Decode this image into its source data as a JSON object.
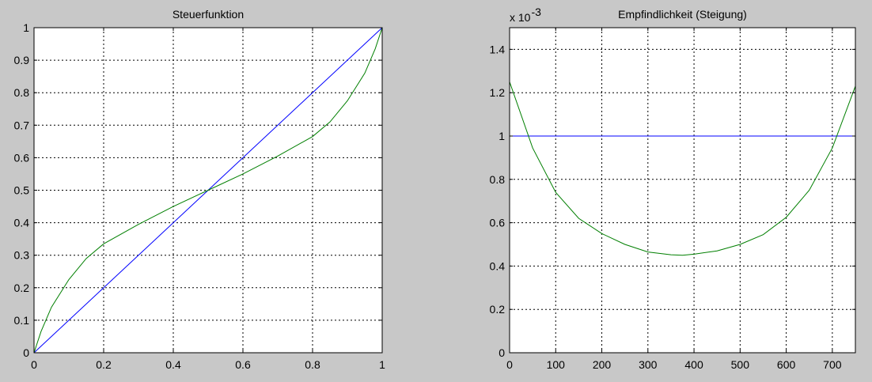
{
  "figure": {
    "background": "#c8c8c8",
    "axes_background": "#ffffff",
    "grid": true,
    "grid_style": "dotted",
    "series_colors": {
      "blue": "#0000ff",
      "green": "#007f00"
    }
  },
  "chart_data": [
    {
      "type": "line",
      "title": "Steuerfunktion",
      "xlabel": "",
      "ylabel": "",
      "xlim": [
        0,
        1
      ],
      "ylim": [
        0,
        1
      ],
      "xticks": [
        0,
        0.2,
        0.4,
        0.6,
        0.8,
        1
      ],
      "xtick_labels": [
        "0",
        "0.2",
        "0.4",
        "0.6",
        "0.8",
        "1"
      ],
      "yticks": [
        0,
        0.1,
        0.2,
        0.3,
        0.4,
        0.5,
        0.6,
        0.7,
        0.8,
        0.9,
        1
      ],
      "ytick_labels": [
        "0",
        "0.1",
        "0.2",
        "0.3",
        "0.4",
        "0.5",
        "0.6",
        "0.7",
        "0.8",
        "0.9",
        "1"
      ],
      "grid": true,
      "series": [
        {
          "color": "#0000ff",
          "x": [
            0,
            1
          ],
          "y": [
            0,
            1
          ]
        },
        {
          "color": "#007f00",
          "x": [
            0,
            0.02,
            0.05,
            0.1,
            0.15,
            0.2,
            0.3,
            0.4,
            0.5,
            0.6,
            0.7,
            0.8,
            0.85,
            0.9,
            0.95,
            0.98,
            1
          ],
          "y": [
            0,
            0.065,
            0.14,
            0.225,
            0.29,
            0.335,
            0.395,
            0.45,
            0.5,
            0.55,
            0.605,
            0.665,
            0.71,
            0.775,
            0.86,
            0.935,
            1
          ]
        }
      ]
    },
    {
      "type": "line",
      "title": "Empfindlichkeit (Steigung)",
      "xlabel": "",
      "ylabel": "",
      "y_multiplier": "x 10",
      "y_exponent": "-3",
      "xlim": [
        0,
        750
      ],
      "ylim": [
        0,
        1.5
      ],
      "xticks": [
        0,
        100,
        200,
        300,
        400,
        500,
        600,
        700
      ],
      "xtick_labels": [
        "0",
        "100",
        "200",
        "300",
        "400",
        "500",
        "600",
        "700"
      ],
      "yticks": [
        0,
        0.2,
        0.4,
        0.6,
        0.8,
        1,
        1.2,
        1.4
      ],
      "ytick_labels": [
        "0",
        "0.2",
        "0.4",
        "0.6",
        "0.8",
        "1",
        "1.2",
        "1.4"
      ],
      "grid": true,
      "series": [
        {
          "color": "#0000ff",
          "x": [
            0,
            750
          ],
          "y": [
            1.0,
            1.0
          ]
        },
        {
          "color": "#007f00",
          "x": [
            0,
            50,
            100,
            150,
            200,
            250,
            300,
            350,
            375,
            400,
            450,
            500,
            550,
            600,
            650,
            700,
            750
          ],
          "y": [
            1.25,
            0.945,
            0.74,
            0.62,
            0.55,
            0.5,
            0.465,
            0.452,
            0.45,
            0.455,
            0.47,
            0.5,
            0.545,
            0.625,
            0.75,
            0.945,
            1.23
          ]
        }
      ]
    }
  ]
}
